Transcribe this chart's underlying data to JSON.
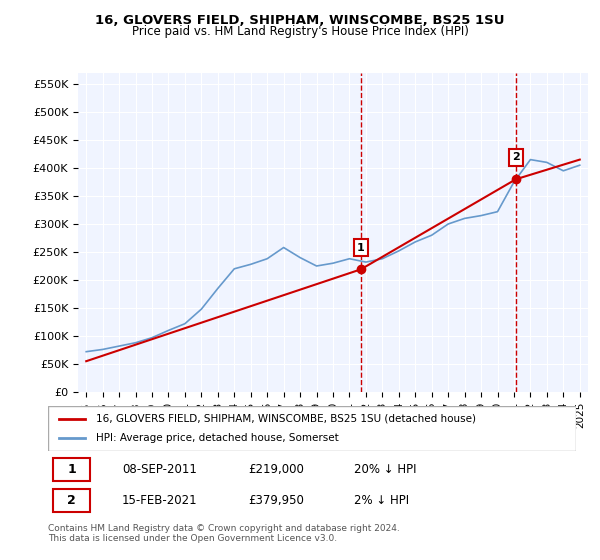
{
  "title1": "16, GLOVERS FIELD, SHIPHAM, WINSCOMBE, BS25 1SU",
  "title2": "Price paid vs. HM Land Registry's House Price Index (HPI)",
  "ylabel_ticks": [
    "£0",
    "£50K",
    "£100K",
    "£150K",
    "£200K",
    "£250K",
    "£300K",
    "£350K",
    "£400K",
    "£450K",
    "£500K",
    "£550K"
  ],
  "ytick_values": [
    0,
    50000,
    100000,
    150000,
    200000,
    250000,
    300000,
    350000,
    400000,
    450000,
    500000,
    550000
  ],
  "ylim": [
    0,
    570000
  ],
  "xlim_start": 1994.5,
  "xlim_end": 2025.5,
  "purchase1_x": 2011.69,
  "purchase1_y": 219000,
  "purchase1_label": "1",
  "purchase2_x": 2021.12,
  "purchase2_y": 379950,
  "purchase2_label": "2",
  "legend_line1": "16, GLOVERS FIELD, SHIPHAM, WINSCOMBE, BS25 1SU (detached house)",
  "legend_line2": "HPI: Average price, detached house, Somerset",
  "table_row1": [
    "1",
    "08-SEP-2011",
    "£219,000",
    "20% ↓ HPI"
  ],
  "table_row2": [
    "2",
    "15-FEB-2021",
    "£379,950",
    "2% ↓ HPI"
  ],
  "footnote": "Contains HM Land Registry data © Crown copyright and database right 2024.\nThis data is licensed under the Open Government Licence v3.0.",
  "line_color_property": "#cc0000",
  "line_color_hpi": "#6699cc",
  "background_color": "#f0f4ff",
  "hpi_years": [
    1995,
    1996,
    1997,
    1998,
    1999,
    2000,
    2001,
    2002,
    2003,
    2004,
    2005,
    2006,
    2007,
    2008,
    2009,
    2010,
    2011,
    2012,
    2013,
    2014,
    2015,
    2016,
    2017,
    2018,
    2019,
    2020,
    2021,
    2022,
    2023,
    2024,
    2025
  ],
  "hpi_values": [
    72000,
    76000,
    82000,
    88000,
    97000,
    110000,
    122000,
    148000,
    185000,
    220000,
    228000,
    238000,
    258000,
    240000,
    225000,
    230000,
    238000,
    232000,
    238000,
    252000,
    268000,
    280000,
    300000,
    310000,
    315000,
    322000,
    375000,
    415000,
    410000,
    395000,
    405000
  ],
  "property_years": [
    1995,
    2011.69,
    2021.12,
    2025
  ],
  "property_values": [
    55000,
    219000,
    379950,
    415000
  ]
}
